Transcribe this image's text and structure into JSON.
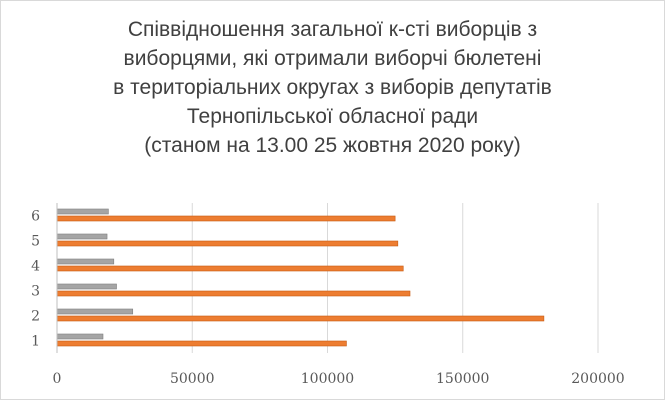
{
  "chart_data": {
    "type": "bar",
    "orientation": "horizontal",
    "title_lines": [
      "Співвідношення загальної к-сті виборців з",
      "виборцями, які отримали виборчі бюлетені",
      "в територіальних округах з виборів депутатів",
      "Тернопільської обласної ради",
      "(станом на 13.00 25 жовтня 2020 року)"
    ],
    "categories": [
      "1",
      "2",
      "3",
      "4",
      "5",
      "6"
    ],
    "series": [
      {
        "color": "#ed7d31",
        "values": [
          107000,
          180000,
          130500,
          128000,
          126000,
          125000
        ]
      },
      {
        "color": "#a5a5a5",
        "values": [
          17000,
          28000,
          22000,
          21000,
          18500,
          19000
        ]
      }
    ],
    "xlim": [
      0,
      200000
    ],
    "x_ticks": [
      0,
      50000,
      100000,
      150000,
      200000
    ],
    "x_tick_labels": [
      "0",
      "50000",
      "100000",
      "150000",
      "200000"
    ],
    "grid": true,
    "legend": "none"
  }
}
